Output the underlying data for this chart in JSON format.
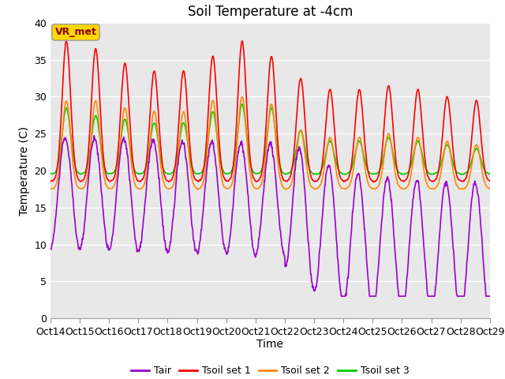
{
  "title": "Soil Temperature at -4cm",
  "xlabel": "Time",
  "ylabel": "Temperature (C)",
  "xlim": [
    0,
    360
  ],
  "ylim": [
    0,
    40
  ],
  "yticks": [
    0,
    5,
    10,
    15,
    20,
    25,
    30,
    35,
    40
  ],
  "xtick_labels": [
    "Oct 14",
    "Oct 15",
    "Oct 16",
    "Oct 17",
    "Oct 18",
    "Oct 19",
    "Oct 20",
    "Oct 21",
    "Oct 22",
    "Oct 23",
    "Oct 24",
    "Oct 25",
    "Oct 26",
    "Oct 27",
    "Oct 28",
    "Oct 29"
  ],
  "xtick_positions": [
    0,
    24,
    48,
    72,
    96,
    120,
    144,
    168,
    192,
    216,
    240,
    264,
    288,
    312,
    336,
    360
  ],
  "annotation_text": "VR_met",
  "annotation_color": "#8B0000",
  "annotation_bg": "#FFD700",
  "background_color": "#E8E8E8",
  "line_colors": {
    "Tair": "#9900CC",
    "Tsoil1": "#FF0000",
    "Tsoil2": "#FF8800",
    "Tsoil3": "#00CC00"
  },
  "legend_labels": [
    "Tair",
    "Tsoil set 1",
    "Tsoil set 2",
    "Tsoil set 3"
  ],
  "title_fontsize": 12,
  "axis_label_fontsize": 10,
  "tick_fontsize": 9
}
